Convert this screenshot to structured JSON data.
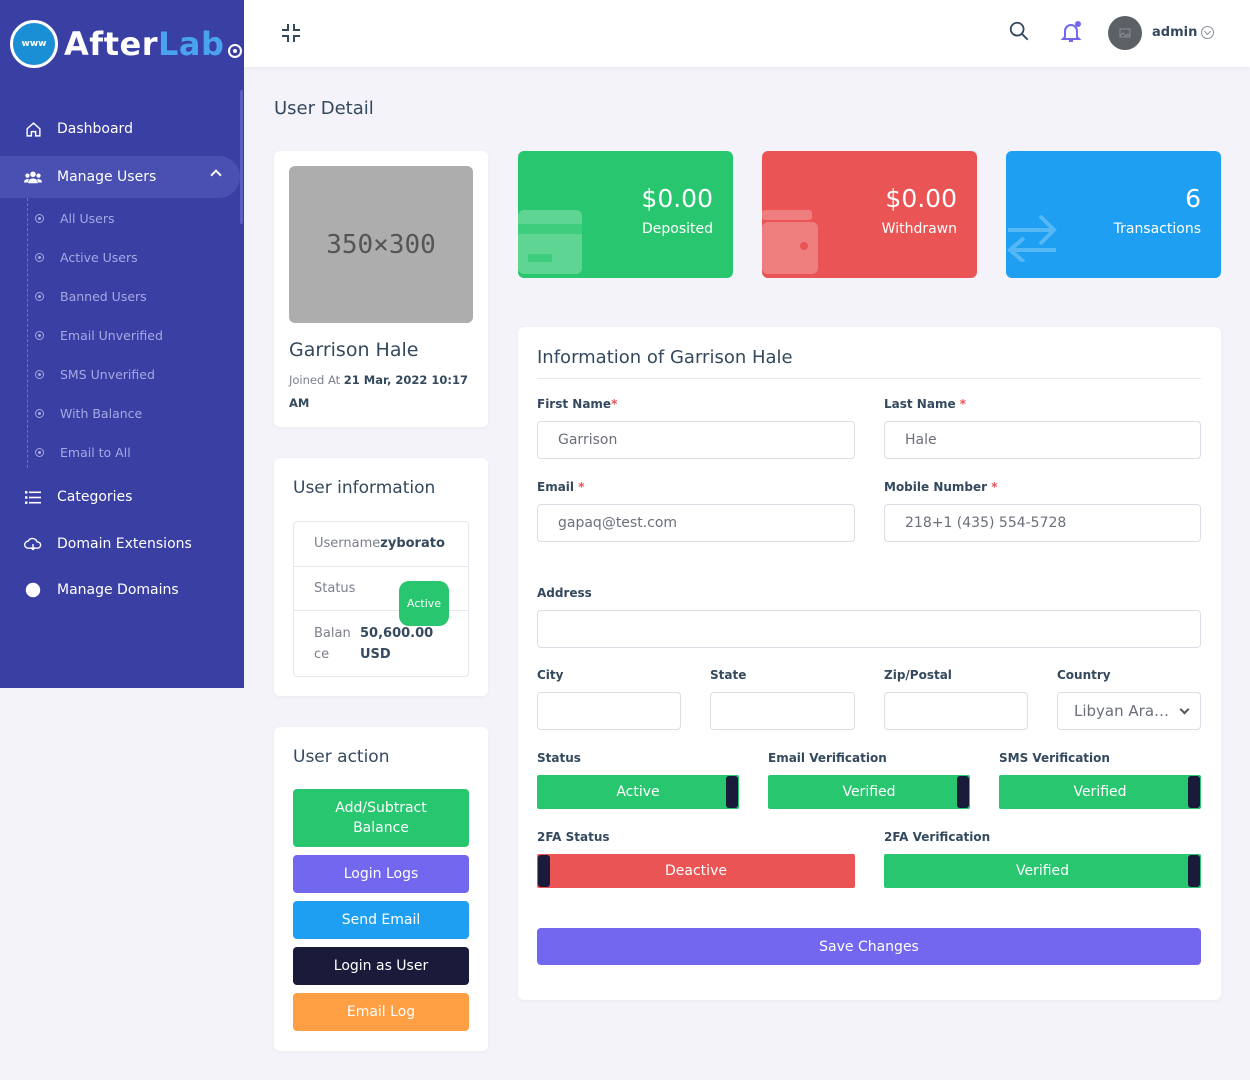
{
  "brand": {
    "logo_globe": "www",
    "logo_part1": "After",
    "logo_part2": "Lab"
  },
  "sidebar": {
    "items": [
      {
        "label": "Dashboard",
        "icon": "home-icon"
      },
      {
        "label": "Manage Users",
        "icon": "users-icon"
      },
      {
        "label": "Categories",
        "icon": "list-icon"
      },
      {
        "label": "Domain Extensions",
        "icon": "cloud-icon"
      },
      {
        "label": "Manage Domains",
        "icon": "globe-icon"
      }
    ],
    "submenu": [
      "All Users",
      "Active Users",
      "Banned Users",
      "Email Unverified",
      "SMS Unverified",
      "With Balance",
      "Email to All"
    ]
  },
  "header": {
    "admin_name": "admin"
  },
  "page": {
    "title": "User Detail"
  },
  "profile": {
    "image_placeholder": "350×300",
    "name": "Garrison Hale",
    "joined_label": "Joined At",
    "joined_date": "21 Mar, 2022 10:17 AM"
  },
  "user_info": {
    "title": "User information",
    "username_label": "Username",
    "username": "zyborato",
    "status_label": "Status",
    "status": "Active",
    "balance_label": "Balance",
    "balance": "50,600.00 USD"
  },
  "user_action": {
    "title": "User action",
    "buttons": [
      "Add/Subtract Balance",
      "Login Logs",
      "Send Email",
      "Login as User",
      "Email Log"
    ]
  },
  "stats": [
    {
      "amount": "$0.00",
      "label": "Deposited",
      "color": "#28c76f"
    },
    {
      "amount": "$0.00",
      "label": "Withdrawn",
      "color": "#ea5455"
    },
    {
      "amount": "6",
      "label": "Transactions",
      "color": "#1e9ff2"
    }
  ],
  "form": {
    "title": "Information of Garrison Hale",
    "first_name_label": "First Name",
    "first_name": "Garrison",
    "last_name_label": "Last Name",
    "last_name": "Hale",
    "email_label": "Email",
    "email": "gapaq@test.com",
    "mobile_label": "Mobile Number",
    "mobile": "218+1 (435) 554-5728",
    "address_label": "Address",
    "address": "",
    "city_label": "City",
    "state_label": "State",
    "zip_label": "Zip/Postal",
    "country_label": "Country",
    "country": "Libyan Arab Jamahiriya",
    "status_label": "Status",
    "status": "Active",
    "email_verification_label": "Email Verification",
    "email_verification": "Verified",
    "sms_verification_label": "SMS Verification",
    "sms_verification": "Verified",
    "twofa_status_label": "2FA Status",
    "twofa_status": "Deactive",
    "twofa_verification_label": "2FA Verification",
    "twofa_verification": "Verified",
    "save_label": "Save Changes"
  },
  "colors": {
    "sidebar": "#3a3fa4",
    "green": "#28c76f",
    "red": "#ea5455",
    "blue": "#1e9ff2",
    "purple": "#7367f0",
    "dark": "#1a1a3a",
    "orange": "#ff9f43"
  }
}
